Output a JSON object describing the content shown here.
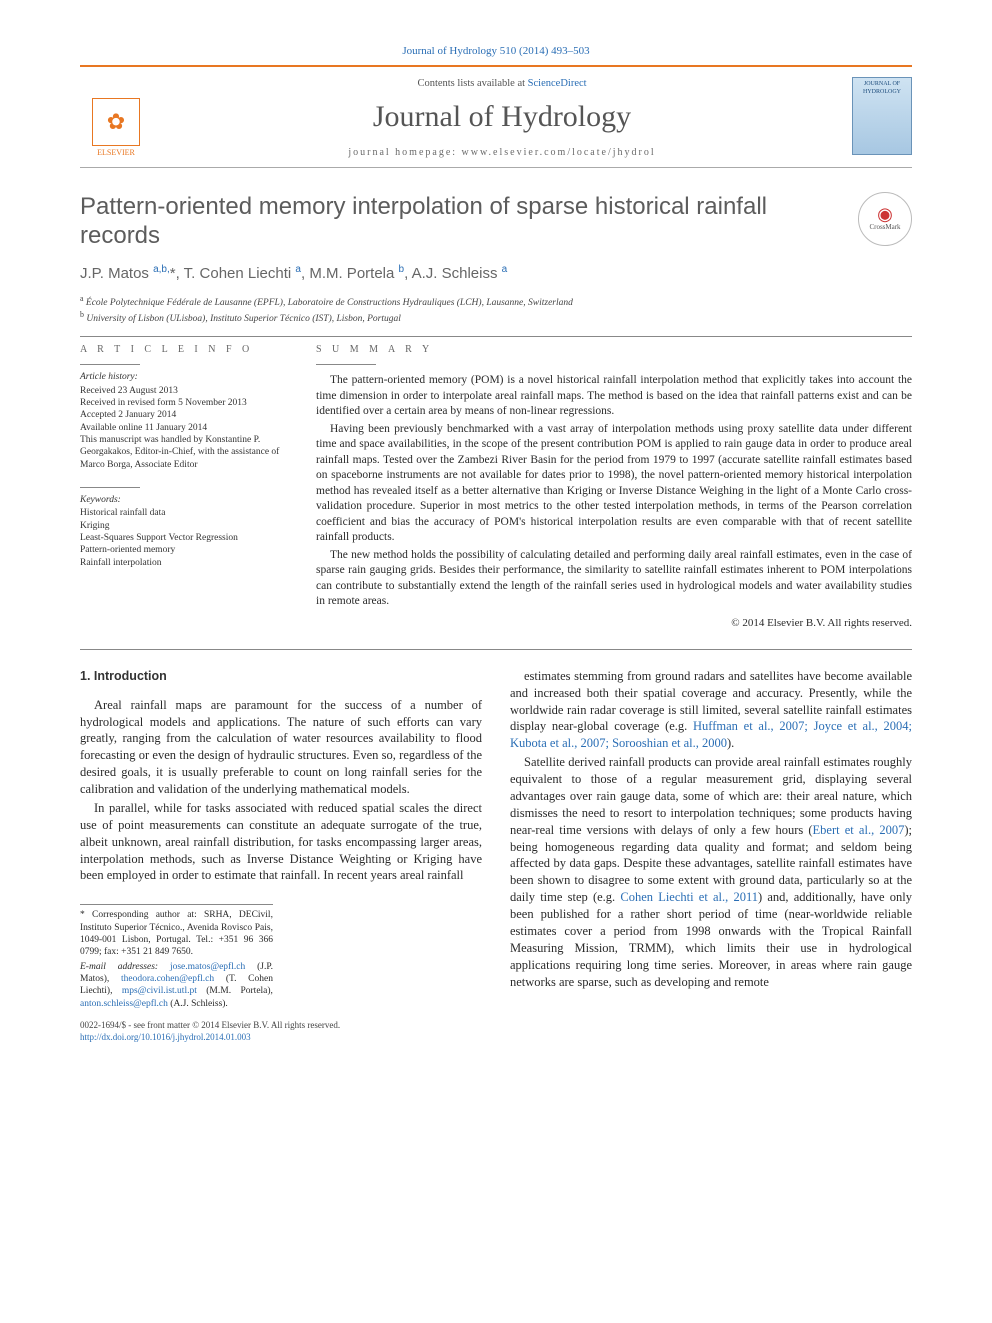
{
  "citation": "Journal of Hydrology 510 (2014) 493–503",
  "masthead": {
    "contents_prefix": "Contents lists available at ",
    "contents_link": "ScienceDirect",
    "journal_name": "Journal of Hydrology",
    "homepage_label": "journal homepage: www.elsevier.com/locate/jhydrol",
    "publisher": "ELSEVIER",
    "cover_label": "JOURNAL OF HYDROLOGY"
  },
  "article": {
    "title": "Pattern-oriented memory interpolation of sparse historical rainfall records",
    "crossmark": "CrossMark",
    "authors_html": "J.P. Matos <sup>a,b,</sup>*, T. Cohen Liechti <sup>a</sup>, M.M. Portela <sup>b</sup>, A.J. Schleiss <sup>a</sup>",
    "affiliations": [
      "a École Polytechnique Fédérale de Lausanne (EPFL), Laboratoire de Constructions Hydrauliques (LCH), Lausanne, Switzerland",
      "b University of Lisbon (ULisboa), Instituto Superior Técnico (IST), Lisbon, Portugal"
    ]
  },
  "info": {
    "heading": "A R T I C L E   I N F O",
    "history_label": "Article history:",
    "history": "Received 23 August 2013\nReceived in revised form 5 November 2013\nAccepted 2 January 2014\nAvailable online 11 January 2014\nThis manuscript was handled by Konstantine P. Georgakakos, Editor-in-Chief, with the assistance of Marco Borga, Associate Editor",
    "keywords_label": "Keywords:",
    "keywords": "Historical rainfall data\nKriging\nLeast-Squares Support Vector Regression\nPattern-oriented memory\nRainfall interpolation"
  },
  "summary": {
    "heading": "S U M M A R Y",
    "p1": "The pattern-oriented memory (POM) is a novel historical rainfall interpolation method that explicitly takes into account the time dimension in order to interpolate areal rainfall maps. The method is based on the idea that rainfall patterns exist and can be identified over a certain area by means of non-linear regressions.",
    "p2": "Having been previously benchmarked with a vast array of interpolation methods using proxy satellite data under different time and space availabilities, in the scope of the present contribution POM is applied to rain gauge data in order to produce areal rainfall maps. Tested over the Zambezi River Basin for the period from 1979 to 1997 (accurate satellite rainfall estimates based on spaceborne instruments are not available for dates prior to 1998), the novel pattern-oriented memory historical interpolation method has revealed itself as a better alternative than Kriging or Inverse Distance Weighing in the light of a Monte Carlo cross-validation procedure. Superior in most metrics to the other tested interpolation methods, in terms of the Pearson correlation coefficient and bias the accuracy of POM's historical interpolation results are even comparable with that of recent satellite rainfall products.",
    "p3": "The new method holds the possibility of calculating detailed and performing daily areal rainfall estimates, even in the case of sparse rain gauging grids. Besides their performance, the similarity to satellite rainfall estimates inherent to POM interpolations can contribute to substantially extend the length of the rainfall series used in hydrological models and water availability studies in remote areas.",
    "copyright": "© 2014 Elsevier B.V. All rights reserved."
  },
  "body": {
    "section_heading": "1. Introduction",
    "p1": "Areal rainfall maps are paramount for the success of a number of hydrological models and applications. The nature of such efforts can vary greatly, ranging from the calculation of water resources availability to flood forecasting or even the design of hydraulic structures. Even so, regardless of the desired goals, it is usually preferable to count on long rainfall series for the calibration and validation of the underlying mathematical models.",
    "p2": "In parallel, while for tasks associated with reduced spatial scales the direct use of point measurements can constitute an adequate surrogate of the true, albeit unknown, areal rainfall distribution, for tasks encompassing larger areas, interpolation methods, such as Inverse Distance Weighting or Kriging have been employed in order to estimate that rainfall. In recent years areal rainfall",
    "p3_pre": "estimates stemming from ground radars and satellites have become available and increased both their spatial coverage and accuracy. Presently, while the worldwide rain radar coverage is still limited, several satellite rainfall estimates display near-global coverage (e.g. ",
    "p3_cite": "Huffman et al., 2007; Joyce et al., 2004; Kubota et al., 2007; Sorooshian et al., 2000",
    "p3_post": ").",
    "p4_a": "Satellite derived rainfall products can provide areal rainfall estimates roughly equivalent to those of a regular measurement grid, displaying several advantages over rain gauge data, some of which are: their areal nature, which dismisses the need to resort to interpolation techniques; some products having near-real time versions with delays of only a few hours (",
    "p4_cite1": "Ebert et al., 2007",
    "p4_b": "); being homogeneous regarding data quality and format; and seldom being affected by data gaps. Despite these advantages, satellite rainfall estimates have been shown to disagree to some extent with ground data, particularly so at the daily time step (e.g. ",
    "p4_cite2": "Cohen Liechti et al., 2011",
    "p4_c": ") and, additionally, have only been published for a rather short period of time (near-worldwide reliable estimates cover a period from 1998 onwards with the Tropical Rainfall Measuring Mission, TRMM), which limits their use in hydrological applications requiring long time series. Moreover, in areas where rain gauge networks are sparse, such as developing and remote"
  },
  "footnotes": {
    "corr": "* Corresponding author at: SRHA, DECivil, Instituto Superior Técnico., Avenida Rovisco Pais, 1049-001 Lisbon, Portugal. Tel.: +351 96 366 0799; fax: +351 21 849 7650.",
    "emails_label": "E-mail addresses: ",
    "e1": "jose.matos@epfl.ch",
    "e1_who": " (J.P. Matos), ",
    "e2": "theodora.cohen@epfl.ch",
    "e2_who": " (T. Cohen Liechti), ",
    "e3": "mps@civil.ist.utl.pt",
    "e3_who": " (M.M. Portela), ",
    "e4": "anton.schleiss@epfl.ch",
    "e4_who": " (A.J. Schleiss)."
  },
  "footer": {
    "line1": "0022-1694/$ - see front matter © 2014 Elsevier B.V. All rights reserved.",
    "doi": "http://dx.doi.org/10.1016/j.jhydrol.2014.01.003"
  },
  "colors": {
    "accent": "#e87722",
    "link": "#2a6eb5",
    "heading_gray": "#5c5c5c"
  }
}
